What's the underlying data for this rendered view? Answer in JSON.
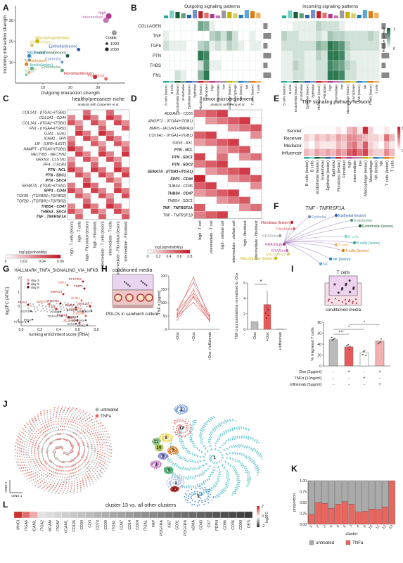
{
  "panels": {
    "A": "A",
    "B": "B",
    "C": "C",
    "D": "D",
    "E": "E",
    "F": "F",
    "G": "G",
    "H": "H",
    "I": "I",
    "J": "J",
    "K": "K",
    "L": "L"
  },
  "panel_a": {
    "xlabel": "Outgoing interaction strength",
    "ylabel": "Incoming interaction strength",
    "legend_title": "Count",
    "legend_values": [
      "1000",
      "2000"
    ],
    "xticks": [
      "10",
      "20",
      "30"
    ],
    "yticks": [
      "10",
      "20",
      "30"
    ],
    "points": [
      {
        "label": "high",
        "color": "#b03a8c"
      },
      {
        "label": "intermediate",
        "color": "#c473b5"
      },
      {
        "label": "low",
        "color": "#9a9a9a"
      },
      {
        "label": "Macrophage(lesion)",
        "color": "#c8b400"
      },
      {
        "label": "Macrophage",
        "color": "#d8cc6a"
      },
      {
        "label": "Epithelial(lesion)",
        "color": "#2f5fa8"
      },
      {
        "label": "Endothelial(lesion)",
        "color": "#1b5e3a"
      },
      {
        "label": "NK(lesion)",
        "color": "#1f7fb4"
      },
      {
        "label": "NK",
        "color": "#5aa8d6"
      },
      {
        "label": "Epithelial",
        "color": "#6f93c8"
      },
      {
        "label": "Tcells(lesion)",
        "color": "#e07a10"
      },
      {
        "label": "Bcells(lesion)",
        "color": "#2aa89a"
      },
      {
        "label": "Tcells",
        "color": "#f0b060"
      },
      {
        "label": "Bcells",
        "color": "#7ccfc4"
      },
      {
        "label": "Endothelial",
        "color": "#5c9c78"
      },
      {
        "label": "Fibroblast(lesion)",
        "color": "#c0202a"
      },
      {
        "label": "Fibroblast",
        "color": "#e07070"
      }
    ]
  },
  "panel_b": {
    "left_title": "Outgoing signaling patterns",
    "right_title": "Incoming signaling patterns",
    "rows": [
      "COLLAGEN",
      "TNF",
      "TGFb",
      "PTN",
      "THBS",
      "FN1"
    ],
    "cols": [
      "B cells (lesion)",
      "B cells",
      "Endothelial (lesion)",
      "Endothelial",
      "Epithelial (lesion)",
      "Epithelial",
      "Fibroblast (lesion)",
      "Fibroblast",
      "high",
      "intermediate",
      "low",
      "Macrophage (lesion)",
      "Macrophage",
      "NK (lesion)",
      "NK",
      "T cells (lesion)",
      "T cells"
    ],
    "legend_title": "Relative strength",
    "legend_ticks": [
      "0",
      "1"
    ]
  },
  "panel_c": {
    "title": "healthy/precancer niche",
    "subtitle": "analysis with Carpenter et al.",
    "rows": [
      "COL1A1 - (ITGA1+ITGB1)",
      "COL1A1 - CD44",
      "COL1A1 - (ITGA2+ITGB1)",
      "FN1 - (ITGA4+ITGB1)",
      "GJA1 - GJA1",
      "ICAM1 - SPN",
      "LIF - (LIFR+IL6ST)",
      "NAMPT - (ITGA5+ITGB1)",
      "NECTIN3 - NECTIN2",
      "NRXN3 - CLSTN1",
      "PF4 - CXCR3",
      "PTN - NCL",
      "PTN - SDC1",
      "PTN - SDC4",
      "SEMA7A - (ITGB1+ITGA1)",
      "SPP1 - CD44",
      "TGFB1 - (TGFBR1+TGFBR2)",
      "TGFB2 - (TGFBR1+TGFBR2)",
      "THBS4 - CD47",
      "THBS4 - SDC4",
      "TNF - TNFRSF1A"
    ],
    "bold_rows": [
      11,
      12,
      13,
      15,
      18,
      19,
      20
    ],
    "cols": [
      "high - T cells (lesion)",
      "high - T cells",
      "high - Fibroblast (lesion)",
      "high - Fibroblast",
      "intermediate - T cells (lesion)",
      "intermediate - T cells",
      "intermediate - Fibroblast (lesion)",
      "intermediate - Fibroblast"
    ],
    "legend_title": "log1p(probability)",
    "legend_ticks": [
      "0",
      "0.02",
      "0.04",
      "0.06"
    ]
  },
  "panel_d": {
    "title": "tumor microenviroment",
    "subtitle": "analysis with Peng et al.",
    "rows": [
      "ADGRE5 - CD55",
      "ANGPT2 - (ITGA4+ITGB1)",
      "BMP6 - (ACVR1+BMPR2)",
      "COL6A1 - (ITGA1+ITGB1)",
      "GAS6 - AXL",
      "PTN - NCL",
      "PTN - SDC1",
      "PTN - SDC2",
      "SEMA7A - (ITGB1+ITGA1)",
      "SPP1 - CD44",
      "THBS4 - CD36",
      "THBS4 - CD47",
      "THBS4 - SDC1",
      "TNF - TNFRSF1A",
      "TNF - TNFRSF1B"
    ],
    "bold_rows": [
      5,
      6,
      7,
      8,
      9,
      11,
      13
    ],
    "cols": [
      "high - T cell",
      "intermediate - T cell",
      "high - stellate cell",
      "intermediate - stellate cell",
      "high - fibroblast",
      "intermediate - fibroblast"
    ],
    "legend_title": "log1p(probability)",
    "legend_ticks": [
      "0",
      "0.2",
      "0.4",
      "0.6",
      "0.8"
    ]
  },
  "panel_e": {
    "title": "TNF signaling pathway network",
    "rows": [
      "Sender",
      "Receiver",
      "Mediator",
      "Influencer"
    ],
    "cols": [
      "B cells (lesion)",
      "B cells",
      "Endothelial (lesion)",
      "Endothelial",
      "Epithelial (lesion)",
      "Epithelial",
      "Fibroblast (lesion)",
      "Fibroblast",
      "high",
      "intermediate",
      "low",
      "Macrophage (lesion)",
      "Macrophage",
      "NK (lesion)",
      "NK",
      "T cells (lesion)",
      "T cells"
    ],
    "legend_title": "Importance",
    "legend_ticks": [
      "0",
      "1"
    ]
  },
  "panel_f": {
    "title": "TNF - TNFRSF1A",
    "nodes": [
      {
        "label": "Epithelial",
        "color": "#6f93c8"
      },
      {
        "label": "Epithelial (lesion)",
        "color": "#2f5fa8"
      },
      {
        "label": "Fibroblast (lesion)",
        "color": "#c0202a"
      },
      {
        "label": "Endothelial",
        "color": "#5c9c78"
      },
      {
        "label": "Endothelial (lesion)",
        "color": "#1b5e3a"
      },
      {
        "label": "Fibroblast",
        "color": "#e07070"
      },
      {
        "label": "B cells",
        "color": "#7ccfc4"
      },
      {
        "label": "KRASlow",
        "color": "#9a9a9a"
      },
      {
        "label": "B cells (lesion)",
        "color": "#2aa89a"
      },
      {
        "label": "KRAShigh",
        "color": "#b03a8c"
      },
      {
        "label": "KRASint",
        "color": "#c473b5"
      },
      {
        "label": "T cells",
        "color": "#f0b060"
      },
      {
        "label": "T cells (lesion)",
        "color": "#e07a10"
      },
      {
        "label": "Macrophage (lesion)",
        "color": "#c8b400"
      },
      {
        "label": "Macrophage",
        "color": "#d8cc6a"
      },
      {
        "label": "NK (lesion)",
        "color": "#1f7fb4"
      },
      {
        "label": "NK",
        "color": "#5aa8d6"
      }
    ]
  },
  "panel_g": {
    "title": "HALLMARK_TNFA_SIGNALING_VIA_NFKB",
    "xlabel": "running enrichment score (RNA)",
    "ylabel": "log2FC (ATAC)",
    "xticks": [
      "0.0",
      "0.2",
      "0.4",
      "0.6",
      "0.8"
    ],
    "yticks": [
      "-1",
      "0",
      "1",
      "2"
    ],
    "legend": [
      "day 3",
      "day 5",
      "day 8"
    ],
    "genes_up": [
      "PFKFB3",
      "TMP2",
      "TMP1",
      "SMAD3",
      "EHD1",
      "IFNGR2",
      "CCL20",
      "SMAD3",
      "EHD1",
      "IL15",
      "OSPF1",
      "PLAU",
      "FOSL1",
      "CFLAR",
      "TNIP1",
      "ZC3H12A"
    ],
    "genes_down": [
      "EGR1",
      "IRS2",
      "FOSB",
      "BCL3",
      "MAP3K8",
      "PHLDA1",
      "TNFAIP3",
      "NFKB2",
      "IKX3",
      "SGK1",
      "MAP3K8"
    ]
  },
  "panel_h": {
    "title": "conditioned media",
    "caption": "PDLOs in sandwich culture",
    "ylabel": "TNF α [pg/ml]",
    "yticks": [
      "0",
      "50",
      "100",
      "150",
      "200"
    ],
    "xcats": [
      "-Dox",
      "+Dox",
      "+Dox +Infliximab"
    ],
    "bar_ylabel": "TNF α concentrations normalized to -Dox",
    "bar_yticks": [
      "0",
      "2",
      "4",
      "6"
    ],
    "bar_cats": [
      "-Dox",
      "+Dox",
      "+Infliximab"
    ],
    "sig": "*"
  },
  "panel_i": {
    "top_label": "T cells",
    "caption": "conditioned media",
    "ylabel": "% migrated T cells",
    "yticks": [
      "0",
      "20",
      "40",
      "60",
      "80"
    ],
    "sig": [
      "***",
      "*",
      "*"
    ],
    "conditions": [
      {
        "name": "Dox [3μg/ml]",
        "values": [
          "-",
          "+",
          "-",
          "+"
        ]
      },
      {
        "name": "TNFα [10ng/ml]",
        "values": [
          "-",
          "-",
          "+",
          "-"
        ]
      },
      {
        "name": "Infliximab [5μg/ml]",
        "values": [
          "-",
          "-",
          "-",
          "+"
        ]
      }
    ]
  },
  "panel_j": {
    "legend": [
      "untreated",
      "TNFa"
    ],
    "axis1": "tSNE 1",
    "axis2": "tSNE 2",
    "clusters": [
      "1",
      "2",
      "3",
      "4",
      "5",
      "6",
      "7",
      "8",
      "9",
      "10",
      "11",
      "12",
      "13"
    ]
  },
  "panel_k": {
    "ylabel": "proportion",
    "xlabel": "cluster",
    "yticks": [
      "0.00",
      "0.25",
      "0.50",
      "0.75",
      "1.00"
    ],
    "legend": [
      "untreated",
      "TNFa"
    ]
  },
  "panel_l": {
    "title": "cluster 13 vs. all other clusters",
    "genes": [
      "MHCI",
      "ITGA6",
      "ICAM1",
      "ITGA2",
      "MCAM",
      "ITGAV",
      "VCAM1",
      "CD105",
      "CD34",
      "CD3",
      "CD74",
      "CD39",
      "ITGB1",
      "CD97",
      "CD14",
      "CD24",
      "ITGA1",
      "FAP",
      "PDGFRA",
      "Ki67",
      "CD31",
      "PDGFRB",
      "aSMA",
      "CD45",
      "CK7",
      "PDPN",
      "CD86",
      "CD36",
      "CD90",
      "DES"
    ],
    "legend_title": "log2FC",
    "legend_ticks": [
      "2",
      "0",
      "-2"
    ]
  },
  "chart_data": [
    {
      "type": "scatter",
      "title": "",
      "xlabel": "Outgoing interaction strength",
      "ylabel": "Incoming interaction strength",
      "xlim": [
        0,
        40
      ],
      "ylim": [
        0,
        37
      ],
      "series": [
        {
          "name": "high",
          "points": [
            [
              34,
              32
            ]
          ]
        },
        {
          "name": "intermediate",
          "points": [
            [
              33,
              30
            ]
          ]
        },
        {
          "name": "low",
          "points": [
            [
              36,
              24
            ]
          ]
        },
        {
          "name": "Macrophage(lesion)",
          "points": [
            [
              8,
              20
            ]
          ]
        },
        {
          "name": "Macrophage",
          "points": [
            [
              6,
              18
            ]
          ]
        },
        {
          "name": "Epithelial(lesion)",
          "points": [
            [
              23,
              16
            ]
          ]
        },
        {
          "name": "Endothelial(lesion)",
          "points": [
            [
              19,
              13
            ]
          ]
        },
        {
          "name": "NK(lesion)",
          "points": [
            [
              5,
              13
            ]
          ]
        },
        {
          "name": "NK",
          "points": [
            [
              5,
              11
            ]
          ]
        },
        {
          "name": "Epithelial",
          "points": [
            [
              17,
              10
            ]
          ]
        },
        {
          "name": "Tcells(lesion)",
          "points": [
            [
              4,
              9
            ]
          ]
        },
        {
          "name": "Bcells(lesion)",
          "points": [
            [
              6,
              7
            ]
          ]
        },
        {
          "name": "Tcells",
          "points": [
            [
              5,
              5
            ]
          ]
        },
        {
          "name": "Bcells",
          "points": [
            [
              4,
              4
            ]
          ]
        },
        {
          "name": "Endothelial",
          "points": [
            [
              17,
              6
            ]
          ]
        },
        {
          "name": "Fibroblast(lesion)",
          "points": [
            [
              29,
              3
            ]
          ]
        },
        {
          "name": "Fibroblast",
          "points": [
            [
              33,
              2
            ]
          ]
        }
      ]
    },
    {
      "type": "bar",
      "title": "",
      "ylabel": "proportion",
      "xlabel": "cluster",
      "categories": [
        "1",
        "2",
        "3",
        "4",
        "5",
        "6",
        "7",
        "8",
        "9",
        "10",
        "11",
        "12",
        "13"
      ],
      "ylim": [
        0,
        1
      ],
      "series": [
        {
          "name": "TNFa",
          "values": [
            0.23,
            0.5,
            0.48,
            0.37,
            0.46,
            0.52,
            0.46,
            0.28,
            0.3,
            0.35,
            0.34,
            0.4,
            1.0
          ]
        },
        {
          "name": "untreated",
          "values": [
            0.77,
            0.5,
            0.52,
            0.63,
            0.54,
            0.48,
            0.54,
            0.72,
            0.7,
            0.65,
            0.66,
            0.6,
            0.0
          ]
        }
      ]
    }
  ]
}
